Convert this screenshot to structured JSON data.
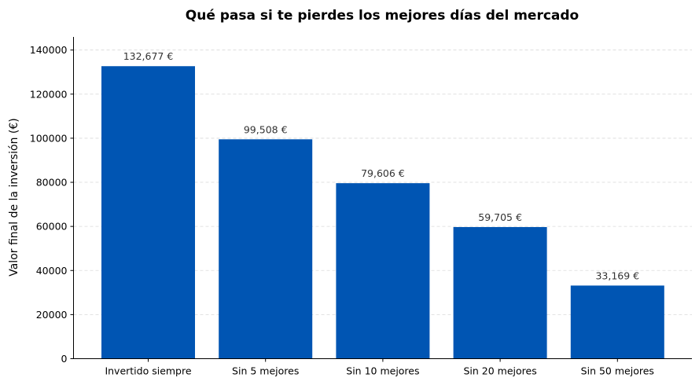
{
  "chart_data": {
    "type": "bar",
    "title": "Qué pasa si te pierdes los mejores días del mercado",
    "xlabel": "",
    "ylabel": "Valor final de la inversión (€)",
    "categories": [
      "Invertido siempre",
      "Sin 5 mejores",
      "Sin 10 mejores",
      "Sin 20 mejores",
      "Sin 50 mejores"
    ],
    "values": [
      132677,
      99508,
      79606,
      59705,
      33169
    ],
    "data_labels": [
      "132,677 €",
      "99,508 €",
      "79,606 €",
      "59,705 €",
      "33,169 €"
    ],
    "ylim": [
      0,
      145945
    ],
    "yticks": [
      0,
      20000,
      40000,
      60000,
      80000,
      100000,
      120000,
      140000
    ],
    "ytick_labels": [
      "0",
      "20000",
      "40000",
      "60000",
      "80000",
      "100000",
      "120000",
      "140000"
    ],
    "grid": "y-dashed",
    "bar_color": "#0055b3"
  }
}
